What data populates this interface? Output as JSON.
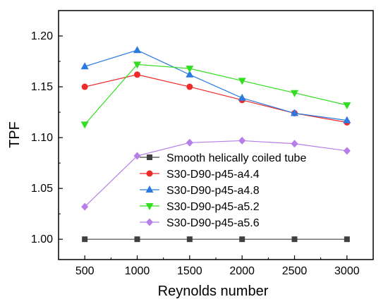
{
  "chart_data": {
    "type": "line",
    "xlabel": "Reynolds number",
    "ylabel": "TPF",
    "x": [
      500,
      1000,
      1500,
      2000,
      2500,
      3000
    ],
    "xticks": [
      "500",
      "1000",
      "1500",
      "2000",
      "2500",
      "3000"
    ],
    "yticks": [
      "1.00",
      "1.05",
      "1.10",
      "1.15",
      "1.20"
    ],
    "xlim": [
      250,
      3250
    ],
    "ylim": [
      0.98,
      1.225
    ],
    "ytick_values": [
      1.0,
      1.05,
      1.1,
      1.15,
      1.2
    ],
    "minor_yticks": [
      1.025,
      1.075,
      1.125,
      1.175
    ],
    "legend_position": "center-bottom",
    "series": [
      {
        "name": "Smooth helically coiled tube",
        "color": "#404040",
        "marker": "square",
        "values": [
          1.0,
          1.0,
          1.0,
          1.0,
          1.0,
          1.0
        ]
      },
      {
        "name": "S30-D90-p45-a4.4",
        "color": "#ee2a2a",
        "marker": "circle",
        "values": [
          1.15,
          1.162,
          1.15,
          1.137,
          1.124,
          1.115
        ]
      },
      {
        "name": "S30-D90-p45-a4.8",
        "color": "#2a7ae2",
        "marker": "triangle-up",
        "values": [
          1.17,
          1.186,
          1.162,
          1.139,
          1.124,
          1.117
        ]
      },
      {
        "name": "S30-D90-p45-a5.2",
        "color": "#33dd22",
        "marker": "triangle-down",
        "values": [
          1.113,
          1.172,
          1.168,
          1.156,
          1.144,
          1.132
        ]
      },
      {
        "name": "S30-D90-p45-a5.6",
        "color": "#b57ee8",
        "marker": "diamond",
        "values": [
          1.032,
          1.082,
          1.095,
          1.097,
          1.094,
          1.087
        ]
      }
    ]
  }
}
